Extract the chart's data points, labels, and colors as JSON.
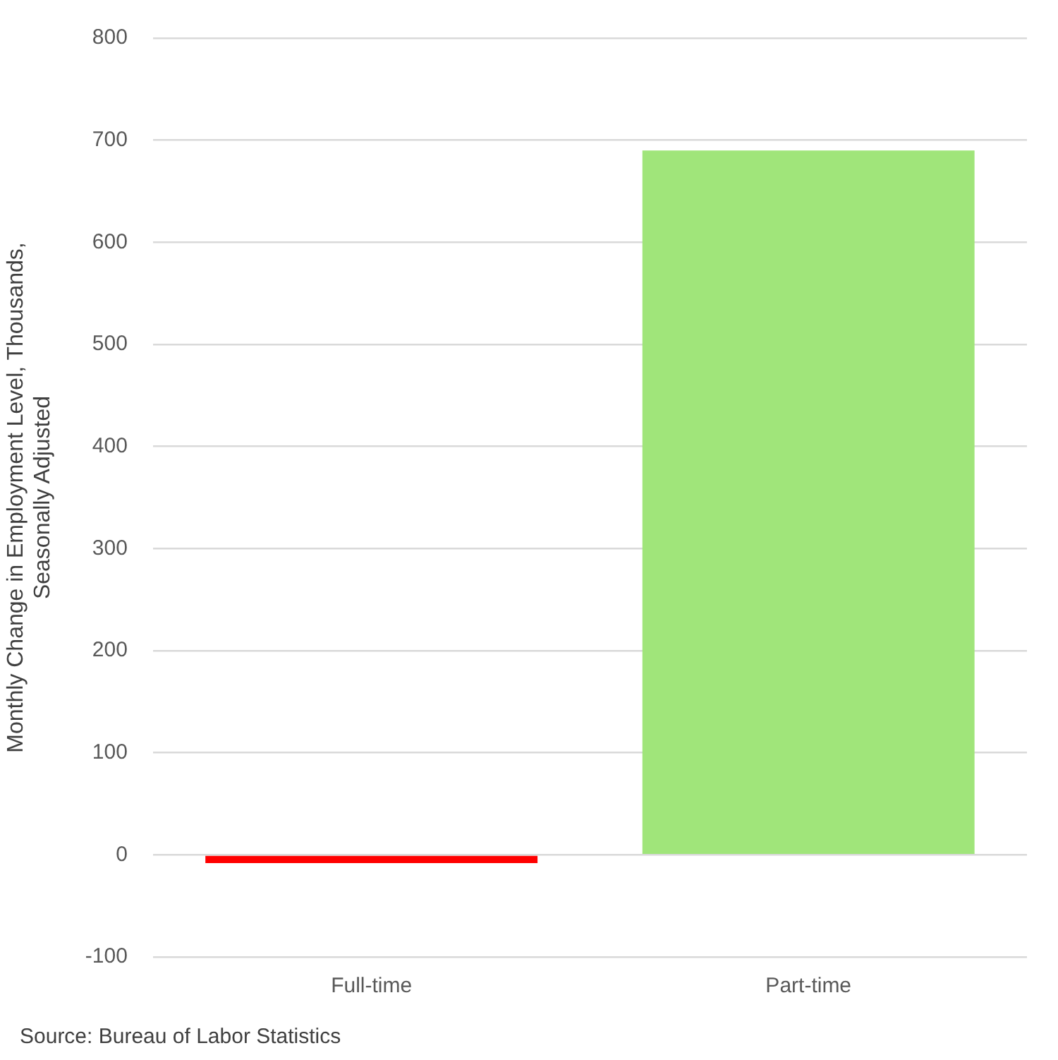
{
  "chart_data": {
    "type": "bar",
    "ylabel": "Monthly Change in Employment Level, Thousands, Seasonally Adjusted",
    "categories": [
      "Full-time",
      "Part-time"
    ],
    "values": [
      -8,
      690
    ],
    "colors": [
      "#ff0000",
      "#a0e57a"
    ],
    "ylim": [
      -100,
      800
    ],
    "yticks": [
      -100,
      0,
      100,
      200,
      300,
      400,
      500,
      600,
      700,
      800
    ],
    "grid": "y",
    "legend": false,
    "annotations": [
      "Source: Bureau of Labor Statistics"
    ]
  }
}
